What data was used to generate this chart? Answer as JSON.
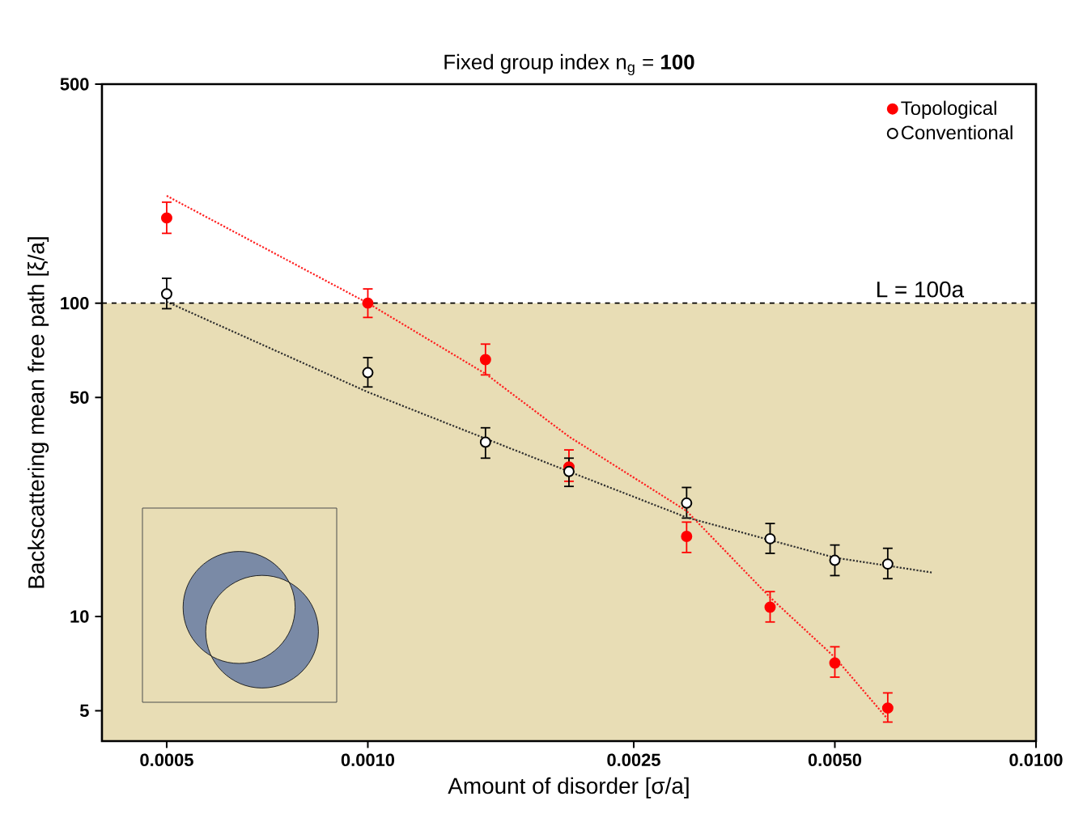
{
  "chart_data": {
    "type": "scatter",
    "title": "Fixed group index n$_{g}$ = **100**",
    "xlabel": "Amount of disorder [σ/a]",
    "ylabel": "Backscattering mean free path [ξ/a]",
    "log": "xy",
    "xlim": [
      0.0004,
      0.01
    ],
    "ylim": [
      4,
      500
    ],
    "xticks": [
      0.0005,
      {
        "value": 0.001,
        "label": "0.0010"
      },
      0.0025,
      {
        "value": 0.005,
        "label": "0.0050"
      },
      {
        "value": 0.01,
        "label": "0.0100"
      }
    ],
    "yticks": [
      5,
      10,
      50,
      100,
      500
    ],
    "legend": "top right",
    "grid": false,
    "ref_lines": [
      {
        "axis": "y",
        "value": 100,
        "label": "L = 100a",
        "color": "#000000",
        "line_style": "dashed"
      }
    ],
    "bands": [
      {
        "axis": "y",
        "from": 4,
        "to": 100,
        "color": "#e8ddb5"
      }
    ],
    "series": [
      {
        "name": "Topological",
        "marker": "circle",
        "color": "#ff0000",
        "x": [
          0.0005,
          0.001,
          0.0015,
          0.002,
          0.003,
          0.004,
          0.005,
          0.006
        ],
        "values": [
          187,
          100,
          66,
          30,
          18,
          10.7,
          7.1,
          5.1
        ],
        "errors": [
          [
            167,
            210
          ],
          [
            90,
            111
          ],
          [
            59,
            74
          ],
          [
            27,
            34
          ],
          [
            16,
            20
          ],
          [
            9.6,
            12
          ],
          [
            6.4,
            8
          ],
          [
            4.6,
            5.7
          ]
        ]
      },
      {
        "name": "Conventional",
        "marker": "circle",
        "color": "#000000",
        "x": [
          0.0005,
          0.001,
          0.0015,
          0.002,
          0.003,
          0.004,
          0.005,
          0.006
        ],
        "values": [
          107,
          60,
          36,
          29,
          23,
          17.7,
          15.1,
          14.7
        ],
        "errors": [
          [
            96,
            120
          ],
          [
            54,
            67
          ],
          [
            32,
            40
          ],
          [
            26,
            32
          ],
          [
            20.6,
            25.8
          ],
          [
            15.9,
            19.8
          ],
          [
            13.5,
            16.9
          ],
          [
            13.2,
            16.5
          ]
        ]
      },
      {
        "type": "line",
        "marker": "none",
        "line_style": "dotted",
        "color": "#ff2020",
        "x": [
          0.0005,
          0.001,
          0.0015,
          0.002,
          0.003,
          0.004,
          0.005,
          0.006
        ],
        "values": [
          220,
          100,
          59.5,
          37.5,
          21.7,
          11.5,
          7.4,
          4.7
        ]
      },
      {
        "type": "line",
        "marker": "none",
        "line_style": "dotted",
        "color": "#303030",
        "x": [
          0.0005,
          0.001,
          0.002,
          0.003,
          0.005,
          0.007
        ],
        "values": [
          101,
          52,
          29,
          20.7,
          15.4,
          13.8
        ]
      }
    ]
  }
}
